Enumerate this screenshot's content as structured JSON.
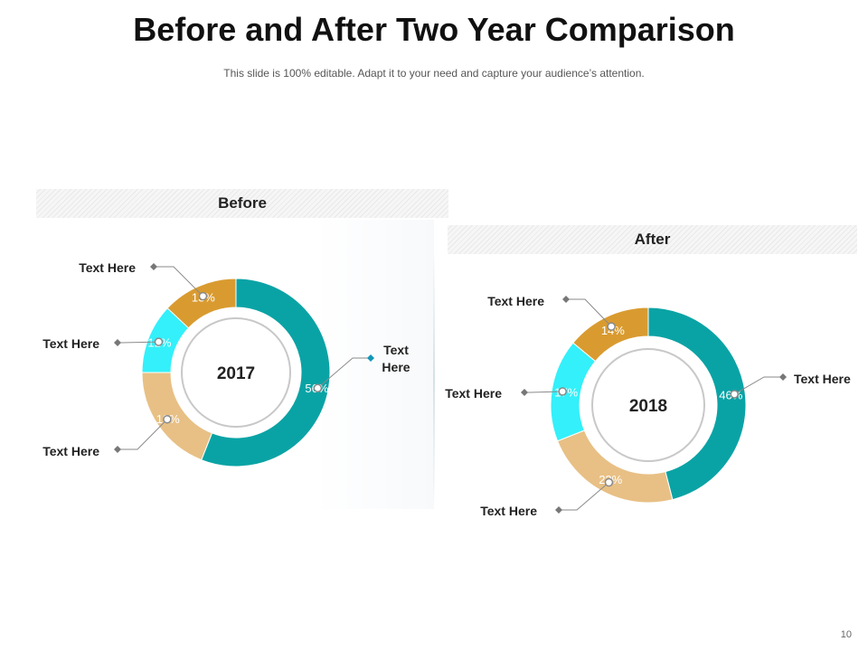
{
  "title": "Before and After Two Year Comparison",
  "subtitle": "This slide is 100% editable. Adapt it to your need and capture your audience’s attention.",
  "page_number": "10",
  "colors": {
    "teal": "#0aa3a5",
    "cyan": "#33f0fa",
    "gold": "#d99b30",
    "tan": "#e8c085",
    "leader": "#8a8a8a",
    "accent_marker": "#1296b8"
  },
  "chart_data": [
    {
      "type": "donut",
      "panel_title": "Before",
      "center_label": "2017",
      "slices": [
        {
          "label": "Text Here",
          "value": 56,
          "value_label": "56%",
          "color": "#0aa3a5"
        },
        {
          "label": "Text Here",
          "value": 19,
          "value_label": "19%",
          "color": "#e8c085"
        },
        {
          "label": "Text Here",
          "value": 12,
          "value_label": "12%",
          "color": "#33f0fa"
        },
        {
          "label": "Text Here",
          "value": 13,
          "value_label": "13%",
          "color": "#d99b30"
        }
      ]
    },
    {
      "type": "donut",
      "panel_title": "After",
      "center_label": "2018",
      "slices": [
        {
          "label": "Text Here",
          "value": 46,
          "value_label": "46%",
          "color": "#0aa3a5"
        },
        {
          "label": "Text Here",
          "value": 23,
          "value_label": "23%",
          "color": "#e8c085"
        },
        {
          "label": "Text Here",
          "value": 17,
          "value_label": "17%",
          "color": "#33f0fa"
        },
        {
          "label": "Text Here",
          "value": 14,
          "value_label": "14%",
          "color": "#d99b30"
        }
      ]
    }
  ]
}
